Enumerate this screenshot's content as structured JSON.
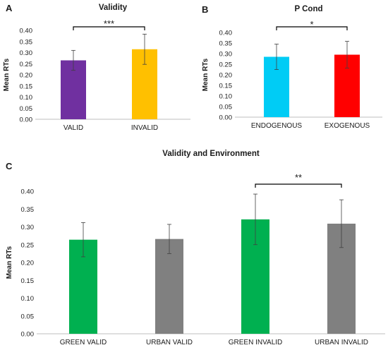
{
  "chart_data": [
    {
      "panel_label": "A",
      "type": "bar",
      "title": "Validity",
      "ylabel": "Mean RTs",
      "categories": [
        "VALID",
        "INVALID"
      ],
      "values": [
        0.265,
        0.315
      ],
      "errors": [
        0.045,
        0.068
      ],
      "colors": [
        "#7030a0",
        "#ffc000"
      ],
      "ylim": [
        0,
        0.4
      ],
      "yticks": [
        "0.00",
        "0.05",
        "0.10",
        "0.15",
        "0.20",
        "0.25",
        "0.30",
        "0.35",
        "0.40"
      ],
      "grid": false,
      "annotations": [
        {
          "text": "***",
          "between": [
            0,
            1
          ]
        }
      ]
    },
    {
      "panel_label": "B",
      "type": "bar",
      "title": "P Cond",
      "ylabel": "Mean RTs",
      "categories": [
        "ENDOGENOUS",
        "EXOGENOUS"
      ],
      "values": [
        0.285,
        0.295
      ],
      "errors": [
        0.06,
        0.063
      ],
      "colors": [
        "#00ccf5",
        "#ff0000"
      ],
      "ylim": [
        0,
        0.4
      ],
      "yticks": [
        "0.00",
        "0.05",
        "0.10",
        "0.15",
        "0.20",
        "0.25",
        "0.30",
        "0.35",
        "0.40"
      ],
      "grid": false,
      "annotations": [
        {
          "text": "*",
          "between": [
            0,
            1
          ]
        }
      ]
    },
    {
      "panel_label": "C",
      "type": "bar",
      "title": "Validity and Environment",
      "ylabel": "Mean RTs",
      "categories": [
        "GREEN VALID",
        "URBAN VALID",
        "GREEN INVALID",
        "URBAN INVALID"
      ],
      "values": [
        0.264,
        0.266,
        0.321,
        0.309
      ],
      "errors": [
        0.048,
        0.041,
        0.071,
        0.067
      ],
      "colors": [
        "#00b050",
        "#808080",
        "#00b050",
        "#808080"
      ],
      "ylim": [
        0,
        0.4
      ],
      "yticks": [
        "0.00",
        "0.05",
        "0.10",
        "0.15",
        "0.20",
        "0.25",
        "0.30",
        "0.35",
        "0.40"
      ],
      "grid": false,
      "annotations": [
        {
          "text": "**",
          "between": [
            2,
            3
          ]
        }
      ]
    }
  ]
}
